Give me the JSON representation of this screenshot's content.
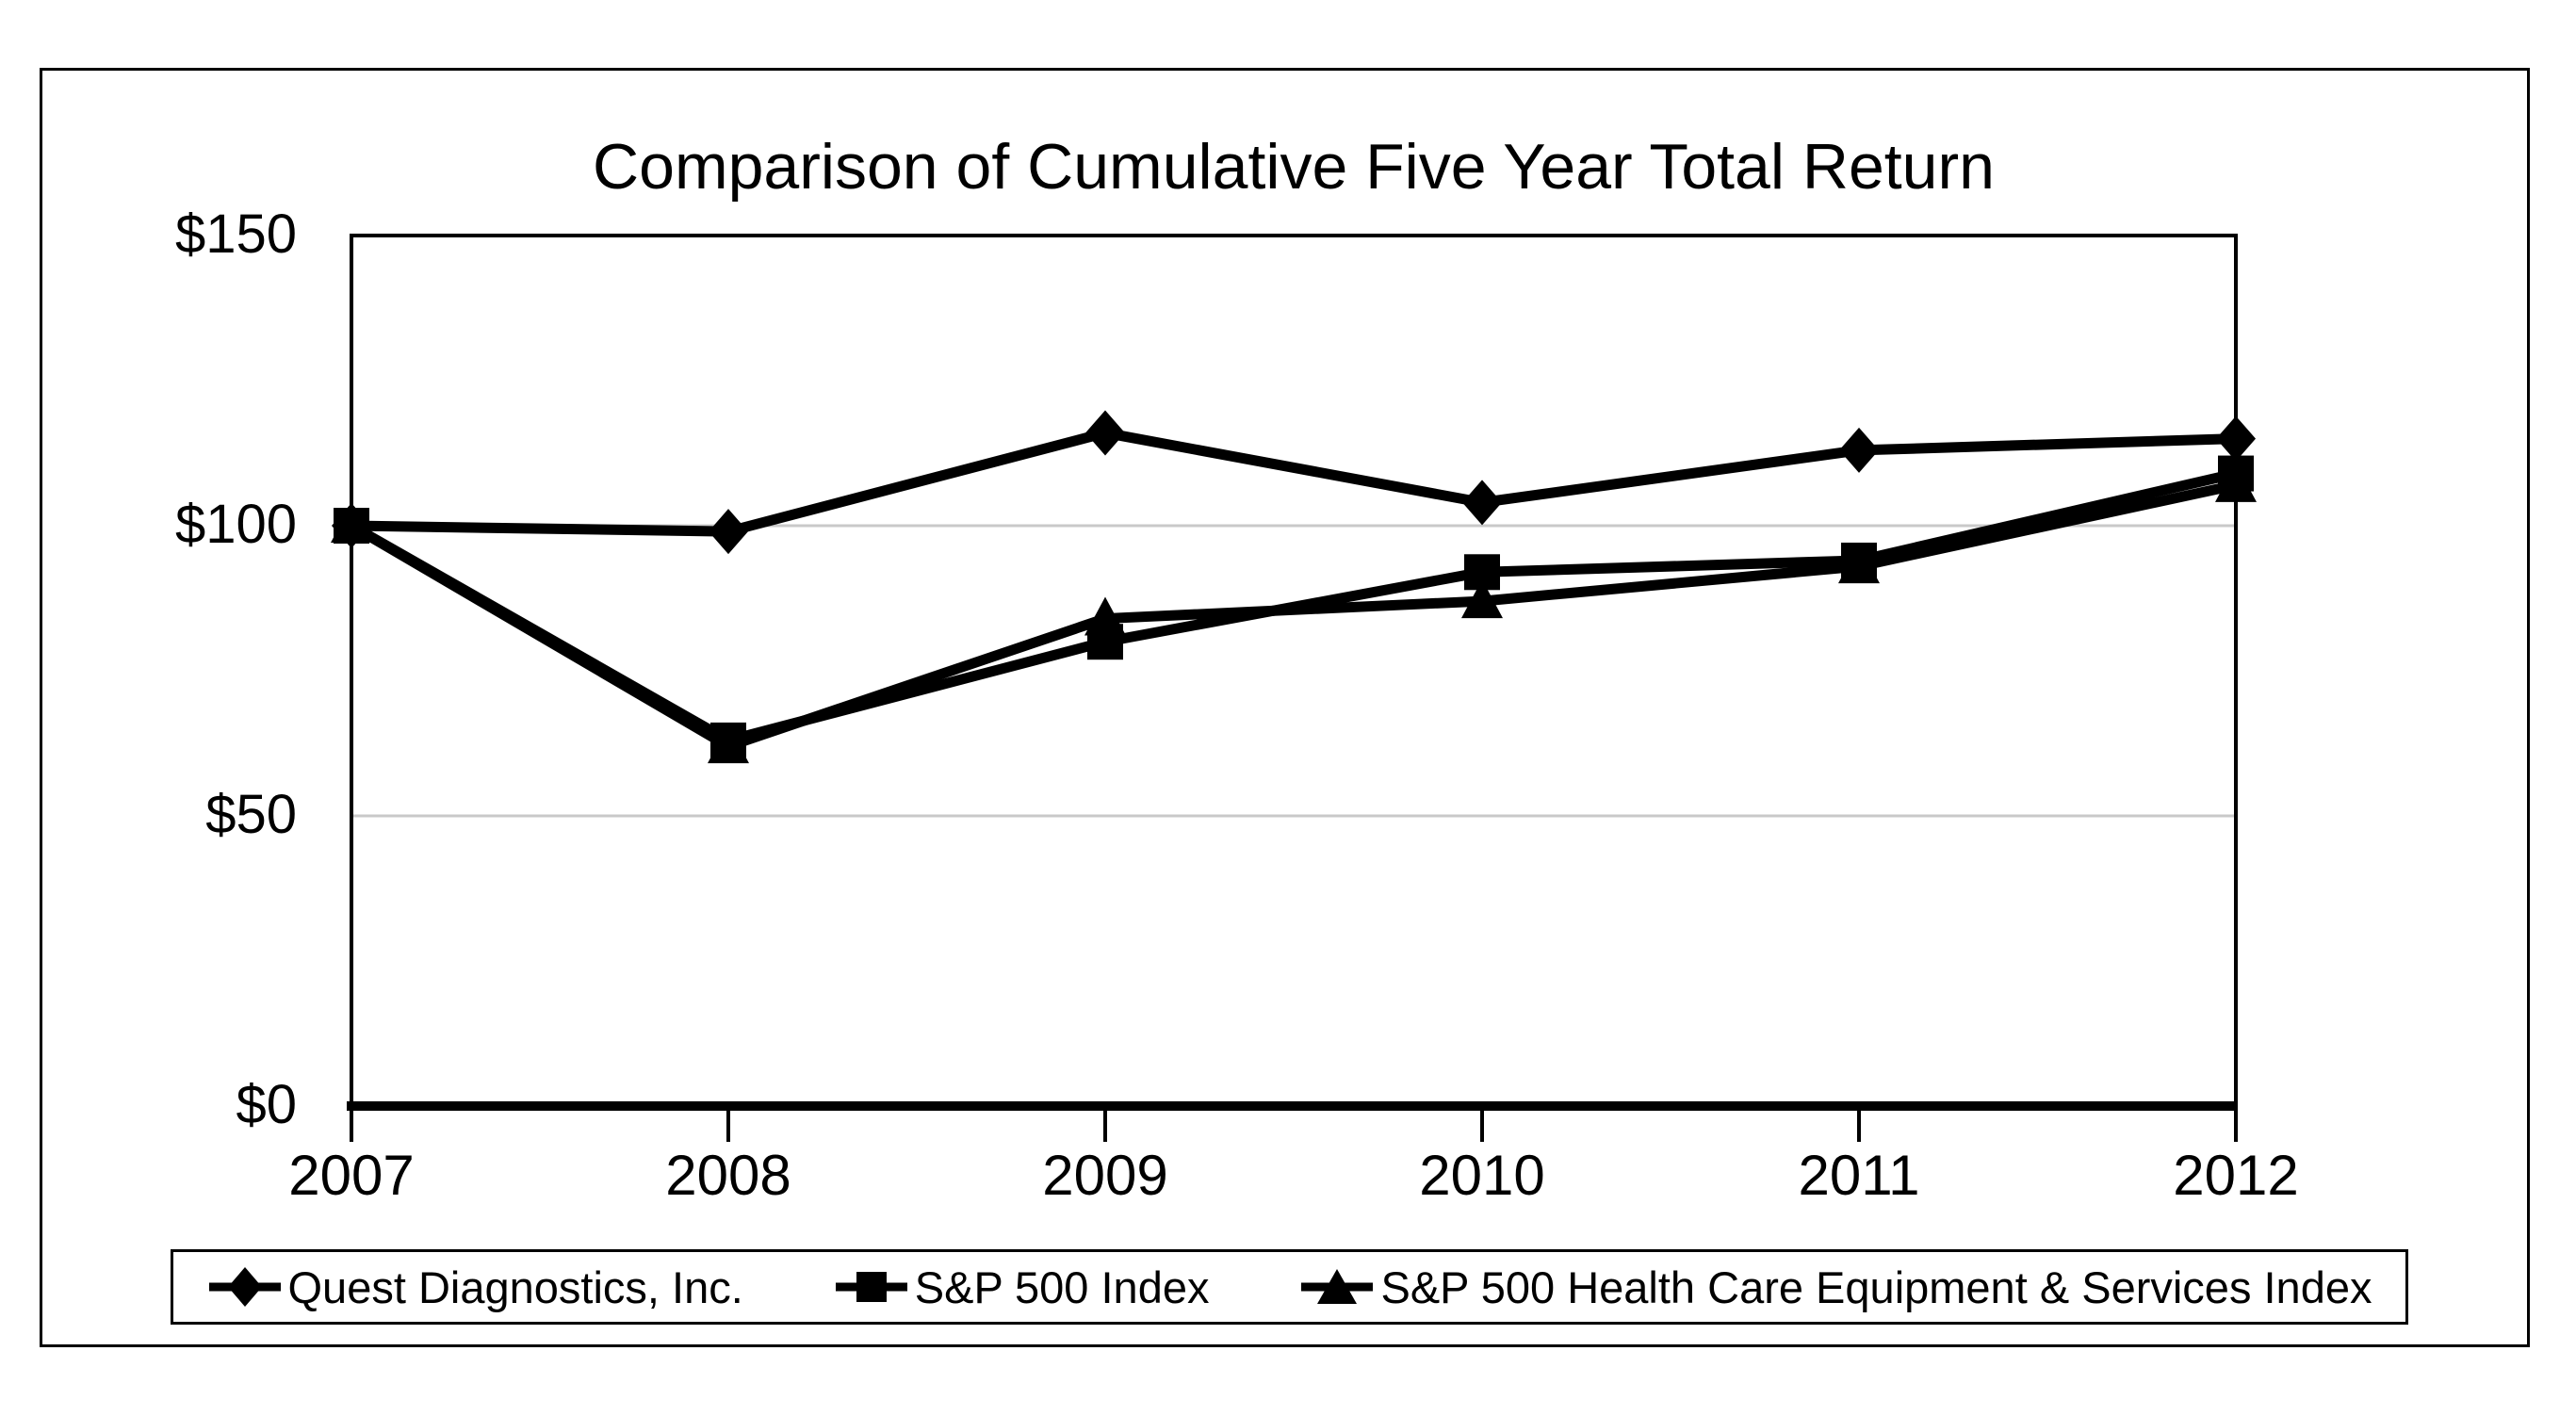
{
  "chart_data": {
    "type": "line",
    "title": "Comparison of Cumulative Five Year Total Return",
    "x_labels": [
      "2007",
      "2008",
      "2009",
      "2010",
      "2011",
      "2012"
    ],
    "y_tick_labels": [
      "$0",
      "$50",
      "$100",
      "$150"
    ],
    "y_tick_values": [
      0,
      50,
      100,
      150
    ],
    "ylim": [
      0,
      150
    ],
    "grid_values": [
      50,
      100
    ],
    "grid_on": true,
    "legend_position": "bottom",
    "series": [
      {
        "name": "Quest Diagnostics, Inc.",
        "marker": "diamond",
        "values": [
          100,
          99,
          116,
          104,
          113,
          115
        ]
      },
      {
        "name": "S&P 500 Index",
        "marker": "square",
        "values": [
          100,
          63,
          80,
          92,
          94,
          109
        ]
      },
      {
        "name": "S&P 500 Health Care Equipment & Services Index",
        "marker": "triangle",
        "values": [
          100,
          62,
          84,
          87,
          93,
          107
        ]
      }
    ],
    "colors": {
      "line": "#000000",
      "grid": "#c9c9c9",
      "border": "#000000",
      "background": "#ffffff",
      "text": "#000000"
    }
  }
}
